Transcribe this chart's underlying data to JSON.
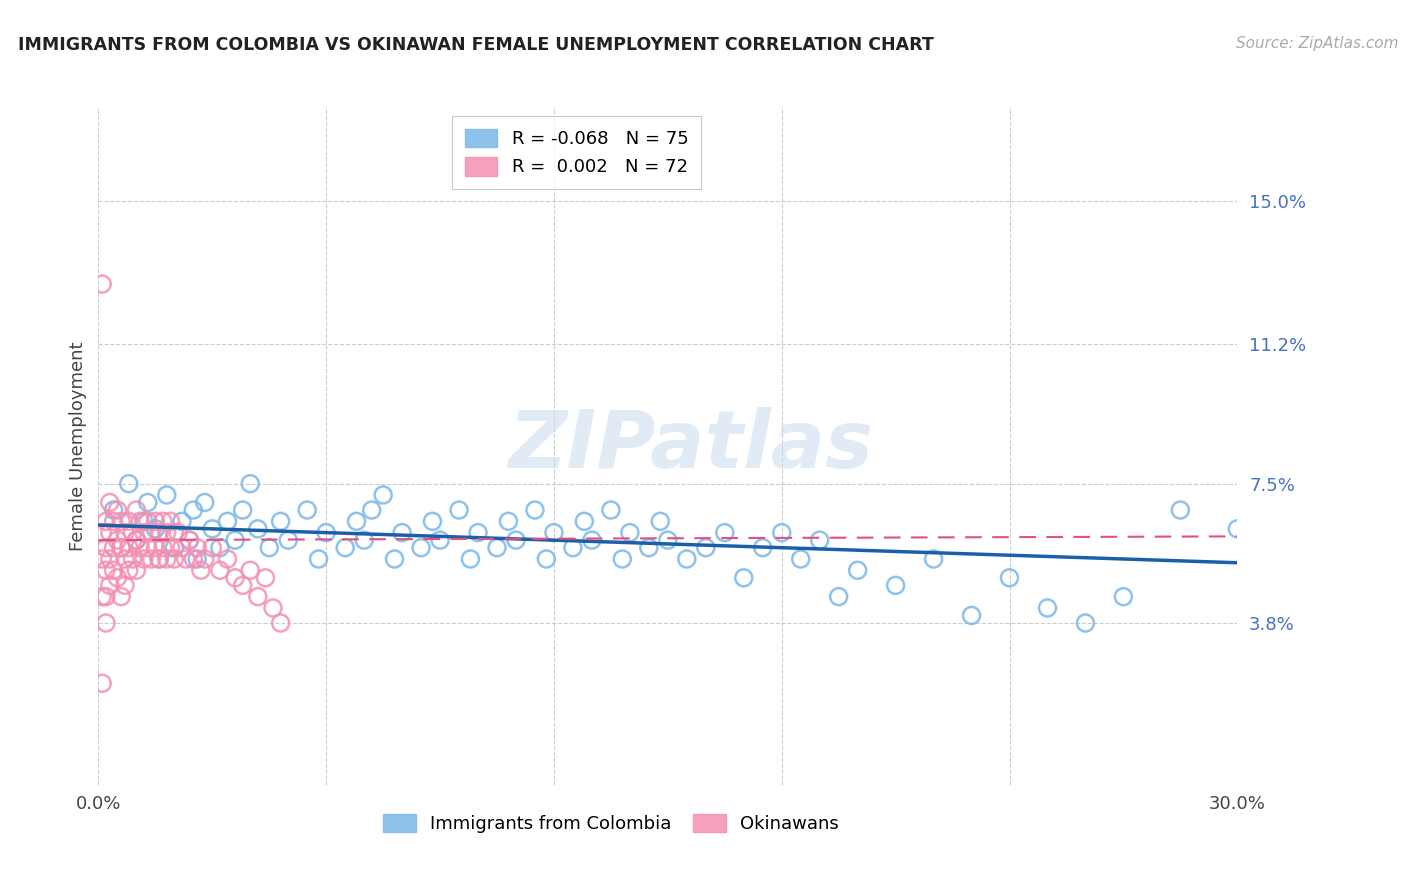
{
  "title": "IMMIGRANTS FROM COLOMBIA VS OKINAWAN FEMALE UNEMPLOYMENT CORRELATION CHART",
  "source": "Source: ZipAtlas.com",
  "xlabel_colombia": "Immigrants from Colombia",
  "xlabel_okinawans": "Okinawans",
  "ylabel": "Female Unemployment",
  "xlim": [
    0.0,
    0.3
  ],
  "ylim": [
    -0.005,
    0.175
  ],
  "xticks": [
    0.0,
    0.06,
    0.12,
    0.18,
    0.24,
    0.3
  ],
  "xtick_labels": [
    "0.0%",
    "",
    "",
    "",
    "",
    "30.0%"
  ],
  "ytick_labels_right": [
    "15.0%",
    "11.2%",
    "7.5%",
    "3.8%"
  ],
  "ytick_values_right": [
    0.15,
    0.112,
    0.075,
    0.038
  ],
  "legend_r1": "R = -0.068",
  "legend_n1": "N = 75",
  "legend_r2": "R =  0.002",
  "legend_n2": "N = 72",
  "color_colombia": "#7ab8e8",
  "color_okinawa": "#f48fb1",
  "color_trendline_colombia": "#1a5fa8",
  "color_trendline_okinawa": "#e05080",
  "watermark_text": "ZIPatlas",
  "colombia_x": [
    0.004,
    0.006,
    0.008,
    0.01,
    0.012,
    0.013,
    0.015,
    0.016,
    0.018,
    0.02,
    0.022,
    0.024,
    0.025,
    0.026,
    0.028,
    0.03,
    0.032,
    0.034,
    0.036,
    0.038,
    0.04,
    0.042,
    0.045,
    0.048,
    0.05,
    0.055,
    0.058,
    0.06,
    0.065,
    0.068,
    0.07,
    0.072,
    0.075,
    0.078,
    0.08,
    0.085,
    0.088,
    0.09,
    0.095,
    0.098,
    0.1,
    0.105,
    0.108,
    0.11,
    0.115,
    0.118,
    0.12,
    0.125,
    0.128,
    0.13,
    0.135,
    0.138,
    0.14,
    0.145,
    0.148,
    0.15,
    0.155,
    0.16,
    0.165,
    0.17,
    0.175,
    0.18,
    0.185,
    0.19,
    0.195,
    0.2,
    0.21,
    0.22,
    0.23,
    0.24,
    0.25,
    0.26,
    0.27,
    0.285,
    0.3
  ],
  "colombia_y": [
    0.068,
    0.058,
    0.075,
    0.06,
    0.065,
    0.07,
    0.063,
    0.055,
    0.072,
    0.058,
    0.065,
    0.06,
    0.068,
    0.055,
    0.07,
    0.063,
    0.058,
    0.065,
    0.06,
    0.068,
    0.075,
    0.063,
    0.058,
    0.065,
    0.06,
    0.068,
    0.055,
    0.062,
    0.058,
    0.065,
    0.06,
    0.068,
    0.072,
    0.055,
    0.062,
    0.058,
    0.065,
    0.06,
    0.068,
    0.055,
    0.062,
    0.058,
    0.065,
    0.06,
    0.068,
    0.055,
    0.062,
    0.058,
    0.065,
    0.06,
    0.068,
    0.055,
    0.062,
    0.058,
    0.065,
    0.06,
    0.055,
    0.058,
    0.062,
    0.05,
    0.058,
    0.062,
    0.055,
    0.06,
    0.045,
    0.052,
    0.048,
    0.055,
    0.04,
    0.05,
    0.042,
    0.038,
    0.045,
    0.068,
    0.063
  ],
  "okinawa_x": [
    0.001,
    0.001,
    0.001,
    0.001,
    0.001,
    0.002,
    0.002,
    0.002,
    0.002,
    0.002,
    0.003,
    0.003,
    0.003,
    0.003,
    0.004,
    0.004,
    0.004,
    0.005,
    0.005,
    0.005,
    0.006,
    0.006,
    0.006,
    0.007,
    0.007,
    0.007,
    0.008,
    0.008,
    0.008,
    0.009,
    0.009,
    0.01,
    0.01,
    0.01,
    0.011,
    0.011,
    0.012,
    0.012,
    0.013,
    0.013,
    0.014,
    0.014,
    0.015,
    0.015,
    0.016,
    0.016,
    0.017,
    0.017,
    0.018,
    0.018,
    0.019,
    0.019,
    0.02,
    0.02,
    0.021,
    0.022,
    0.023,
    0.024,
    0.025,
    0.026,
    0.027,
    0.028,
    0.03,
    0.032,
    0.034,
    0.036,
    0.038,
    0.04,
    0.042,
    0.044,
    0.046,
    0.048
  ],
  "okinawa_y": [
    0.128,
    0.062,
    0.055,
    0.045,
    0.022,
    0.065,
    0.058,
    0.052,
    0.045,
    0.038,
    0.07,
    0.062,
    0.055,
    0.048,
    0.065,
    0.058,
    0.052,
    0.068,
    0.06,
    0.05,
    0.065,
    0.058,
    0.045,
    0.062,
    0.055,
    0.048,
    0.065,
    0.058,
    0.052,
    0.062,
    0.055,
    0.068,
    0.06,
    0.052,
    0.065,
    0.058,
    0.062,
    0.055,
    0.065,
    0.058,
    0.062,
    0.055,
    0.065,
    0.058,
    0.062,
    0.055,
    0.065,
    0.058,
    0.062,
    0.055,
    0.065,
    0.058,
    0.062,
    0.055,
    0.062,
    0.058,
    0.055,
    0.06,
    0.055,
    0.058,
    0.052,
    0.055,
    0.058,
    0.052,
    0.055,
    0.05,
    0.048,
    0.052,
    0.045,
    0.05,
    0.042,
    0.038
  ],
  "colombia_trendline_x": [
    0.0,
    0.3
  ],
  "colombia_trendline_y": [
    0.064,
    0.054
  ],
  "okinawa_trendline_x": [
    0.0,
    0.3
  ],
  "okinawa_trendline_y": [
    0.06,
    0.061
  ]
}
